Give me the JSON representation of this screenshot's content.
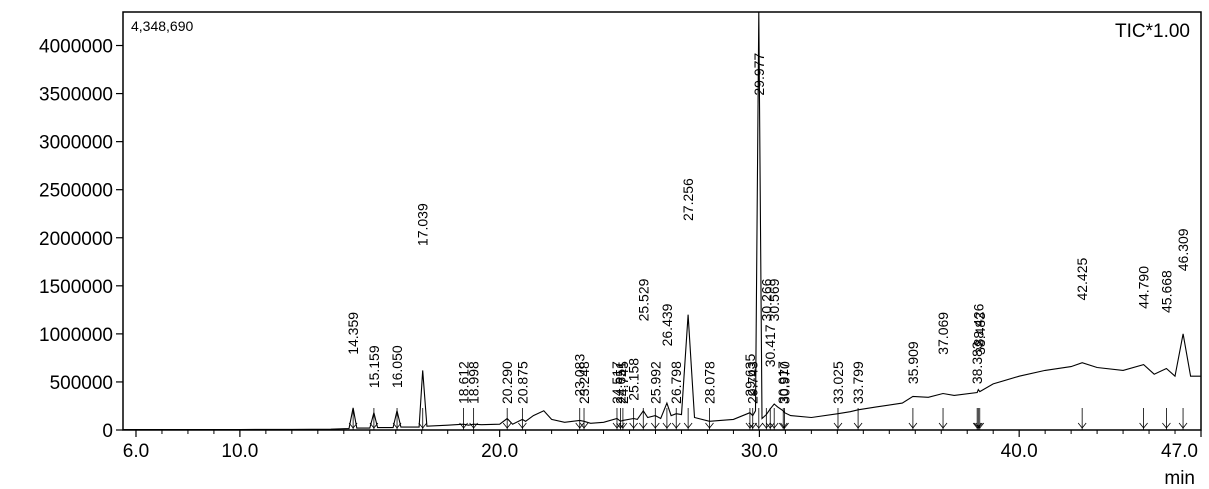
{
  "chart_data": {
    "type": "line",
    "title": "",
    "trace_label": "TIC*1.00",
    "max_intensity_label": "4,348,690",
    "xlabel": "min",
    "ylabel": "",
    "xlim": [
      5.5,
      47.0
    ],
    "ylim": [
      0,
      4348690
    ],
    "x_ticks": [
      6.0,
      10.0,
      20.0,
      30.0,
      40.0,
      47.0
    ],
    "x_tick_labels": [
      "6.0",
      "10.0",
      "20.0",
      "30.0",
      "40.0",
      "47.0"
    ],
    "y_ticks": [
      0,
      500000,
      1000000,
      1500000,
      2000000,
      2500000,
      3000000,
      3500000,
      4000000
    ],
    "y_tick_labels": [
      "0",
      "500000",
      "1000000",
      "1500000",
      "2000000",
      "2500000",
      "3000000",
      "3500000",
      "4000000"
    ],
    "grid": false,
    "series": [
      {
        "x": [
          5.5,
          8.0,
          10.0,
          12.0,
          13.5,
          14.2,
          14.359,
          14.5,
          15.0,
          15.159,
          15.3,
          15.9,
          16.05,
          16.2,
          16.9,
          17.039,
          17.2,
          18.0,
          18.612,
          18.8,
          18.998,
          19.3,
          20.0,
          20.29,
          20.5,
          20.875,
          21.0,
          21.3,
          21.7,
          22.0,
          22.5,
          23.083,
          23.248,
          23.5,
          24.0,
          24.517,
          24.651,
          24.745,
          25.158,
          25.3,
          25.529,
          25.7,
          25.992,
          26.2,
          26.439,
          26.6,
          26.798,
          27.0,
          27.256,
          27.5,
          28.078,
          28.5,
          29.0,
          29.635,
          29.743,
          29.85,
          29.977,
          30.1,
          30.266,
          30.417,
          30.569,
          30.7,
          30.917,
          30.97,
          31.2,
          32.0,
          33.025,
          33.5,
          33.799,
          34.5,
          35.5,
          35.909,
          36.5,
          37.069,
          37.5,
          38.383,
          38.426,
          38.483,
          39.0,
          40.0,
          41.0,
          42.0,
          42.425,
          43.0,
          44.0,
          44.79,
          45.2,
          45.668,
          46.0,
          46.309,
          46.6,
          47.0
        ],
        "y": [
          5000,
          5000,
          5000,
          6000,
          8000,
          15000,
          230000,
          20000,
          20000,
          180000,
          25000,
          25000,
          200000,
          30000,
          30000,
          620000,
          40000,
          50000,
          60000,
          50000,
          60000,
          55000,
          60000,
          120000,
          60000,
          110000,
          90000,
          150000,
          200000,
          110000,
          80000,
          100000,
          90000,
          70000,
          80000,
          120000,
          90000,
          100000,
          120000,
          110000,
          200000,
          130000,
          150000,
          120000,
          280000,
          150000,
          170000,
          160000,
          1200000,
          130000,
          90000,
          100000,
          110000,
          180000,
          150000,
          200000,
          4348690,
          120000,
          160000,
          220000,
          270000,
          240000,
          200000,
          180000,
          150000,
          130000,
          170000,
          190000,
          210000,
          240000,
          280000,
          350000,
          340000,
          380000,
          360000,
          390000,
          420000,
          400000,
          480000,
          560000,
          620000,
          660000,
          700000,
          650000,
          620000,
          680000,
          580000,
          640000,
          560000,
          1000000,
          560000,
          560000
        ]
      }
    ],
    "peak_labels": [
      {
        "rt": 14.359,
        "label": "14.359",
        "tip": 0.4
      },
      {
        "rt": 15.159,
        "label": "15.159",
        "tip": 0.32
      },
      {
        "rt": 16.05,
        "label": "16.050",
        "tip": 0.32
      },
      {
        "rt": 17.039,
        "label": "17.039",
        "tip": 0.66
      },
      {
        "rt": 18.612,
        "label": "18.612",
        "tip": 0.26
      },
      {
        "rt": 18.998,
        "label": "18.998",
        "tip": 0.28
      },
      {
        "rt": 20.29,
        "label": "20.290",
        "tip": 0.22
      },
      {
        "rt": 20.875,
        "label": "20.875",
        "tip": 0.22
      },
      {
        "rt": 23.083,
        "label": "23.083",
        "tip": 0.3
      },
      {
        "rt": 23.248,
        "label": "23.248",
        "tip": 0.25
      },
      {
        "rt": 24.517,
        "label": "24.517",
        "tip": 0.28
      },
      {
        "rt": 24.651,
        "label": "24.651",
        "tip": 0.21
      },
      {
        "rt": 24.745,
        "label": "24.745",
        "tip": 0.18
      },
      {
        "rt": 25.158,
        "label": "25.158",
        "tip": 0.29
      },
      {
        "rt": 25.529,
        "label": "25.529",
        "tip": 0.48
      },
      {
        "rt": 25.992,
        "label": "25.992",
        "tip": 0.25
      },
      {
        "rt": 26.439,
        "label": "26.439",
        "tip": 0.42
      },
      {
        "rt": 26.798,
        "label": "26.798",
        "tip": 0.19
      },
      {
        "rt": 27.256,
        "label": "27.256",
        "tip": 0.72
      },
      {
        "rt": 28.078,
        "label": "28.078",
        "tip": 0.21
      },
      {
        "rt": 29.635,
        "label": "29.635",
        "tip": 0.3
      },
      {
        "rt": 29.743,
        "label": "29.743",
        "tip": 0.23
      },
      {
        "rt": 29.977,
        "label": "29.977",
        "tip": 1.02
      },
      {
        "rt": 30.266,
        "label": "30.266",
        "tip": 0.48
      },
      {
        "rt": 30.417,
        "label": "30.417",
        "tip": 0.37
      },
      {
        "rt": 30.569,
        "label": "30.569",
        "tip": 0.48
      },
      {
        "rt": 30.917,
        "label": "30.917",
        "tip": 0.28
      },
      {
        "rt": 30.97,
        "label": "30.970",
        "tip": 0.22
      },
      {
        "rt": 33.025,
        "label": "33.025",
        "tip": 0.24
      },
      {
        "rt": 33.799,
        "label": "33.799",
        "tip": 0.24
      },
      {
        "rt": 35.909,
        "label": "35.909",
        "tip": 0.33
      },
      {
        "rt": 37.069,
        "label": "37.069",
        "tip": 0.4
      },
      {
        "rt": 38.383,
        "label": "38.383",
        "tip": 0.33
      },
      {
        "rt": 38.426,
        "label": "38.426",
        "tip": 0.42
      },
      {
        "rt": 38.483,
        "label": "38.483",
        "tip": 0.4
      },
      {
        "rt": 42.425,
        "label": "42.425",
        "tip": 0.53
      },
      {
        "rt": 44.79,
        "label": "44.790",
        "tip": 0.51
      },
      {
        "rt": 45.668,
        "label": "45.668",
        "tip": 0.5
      },
      {
        "rt": 46.309,
        "label": "46.309",
        "tip": 0.6
      }
    ]
  }
}
